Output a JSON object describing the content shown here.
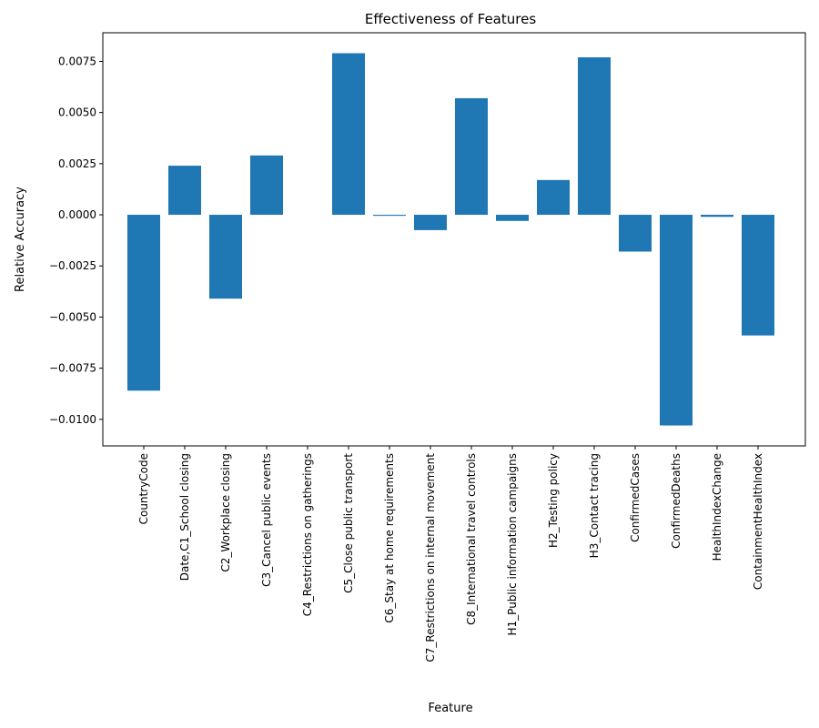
{
  "chart_data": {
    "type": "bar",
    "title": "Effectiveness of Features",
    "xlabel": "Feature",
    "ylabel": "Relative Accuracy",
    "ylim": [
      -0.0113,
      0.0089
    ],
    "yticks": [
      0.0075,
      0.005,
      0.0025,
      0.0,
      -0.0025,
      -0.005,
      -0.0075,
      -0.01
    ],
    "ytick_labels": [
      "0.0075",
      "0.0050",
      "0.0025",
      "0.0000",
      "−0.0025",
      "−0.0050",
      "−0.0075",
      "−0.0100"
    ],
    "grid": false,
    "bar_color": "#1f77b4",
    "categories": [
      "CountryCode",
      "Date,C1_School closing",
      "C2_Workplace closing",
      "C3_Cancel public events",
      "C4_Restrictions on gatherings",
      "C5_Close public transport",
      "C6_Stay at home requirements",
      "C7_Restrictions on internal movement",
      "C8_International travel controls",
      "H1_Public information campaigns",
      "H2_Testing policy",
      "H3_Contact tracing",
      "ConfirmedCases",
      "ConfirmedDeaths",
      "HealthIndexChange",
      "ContainmentHealthIndex"
    ],
    "values": [
      -0.0086,
      0.0024,
      -0.0041,
      0.0029,
      0.0,
      0.0079,
      -5e-05,
      -0.00075,
      0.0057,
      -0.0003,
      0.0017,
      0.0077,
      -0.0018,
      -0.0103,
      -0.0001,
      -0.0059
    ]
  }
}
